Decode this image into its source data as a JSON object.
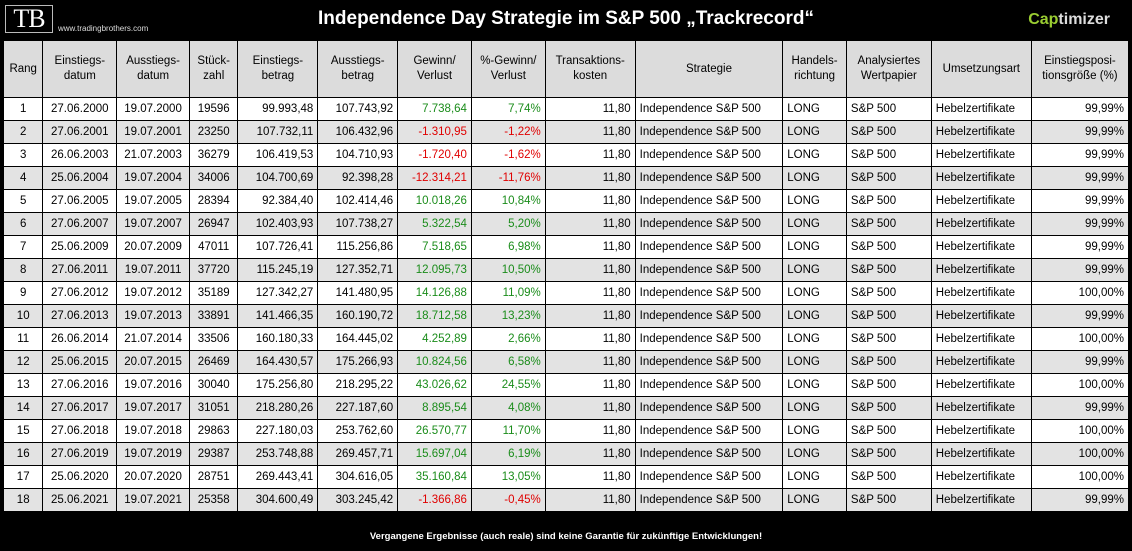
{
  "header": {
    "logo_text": "TB",
    "logo_url": "www.tradingbrothers.com",
    "title": "Independence Day Strategie im S&P 500 „Trackrecord“",
    "brand_prefix": "Cap",
    "brand_suffix": "timizer"
  },
  "columns": [
    "Rang",
    "Einstiegs-\ndatum",
    "Ausstiegs-\ndatum",
    "Stück-\nzahl",
    "Einstiegs-\nbetrag",
    "Ausstiegs-\nbetrag",
    "Gewinn/\nVerlust",
    "%-Gewinn/\nVerlust",
    "Transaktions-\nkosten",
    "Strategie",
    "Handels-\nrichtung",
    "Analysiertes\nWertpapier",
    "Umsetzungsart",
    "Einstiegsposi-\ntionsgröße (%)"
  ],
  "rows": [
    [
      "1",
      "27.06.2000",
      "19.07.2000",
      "19596",
      "99.993,48",
      "107.743,92",
      "7.738,64",
      "7,74%",
      "11,80",
      "Independence S&P 500",
      "LONG",
      "S&P 500",
      "Hebelzertifikate",
      "99,99%"
    ],
    [
      "2",
      "27.06.2001",
      "19.07.2001",
      "23250",
      "107.732,11",
      "106.432,96",
      "-1.310,95",
      "-1,22%",
      "11,80",
      "Independence S&P 500",
      "LONG",
      "S&P 500",
      "Hebelzertifikate",
      "99,99%"
    ],
    [
      "3",
      "26.06.2003",
      "21.07.2003",
      "36279",
      "106.419,53",
      "104.710,93",
      "-1.720,40",
      "-1,62%",
      "11,80",
      "Independence S&P 500",
      "LONG",
      "S&P 500",
      "Hebelzertifikate",
      "99,99%"
    ],
    [
      "4",
      "25.06.2004",
      "19.07.2004",
      "34006",
      "104.700,69",
      "92.398,28",
      "-12.314,21",
      "-11,76%",
      "11,80",
      "Independence S&P 500",
      "LONG",
      "S&P 500",
      "Hebelzertifikate",
      "99,99%"
    ],
    [
      "5",
      "27.06.2005",
      "19.07.2005",
      "28394",
      "92.384,40",
      "102.414,46",
      "10.018,26",
      "10,84%",
      "11,80",
      "Independence S&P 500",
      "LONG",
      "S&P 500",
      "Hebelzertifikate",
      "99,99%"
    ],
    [
      "6",
      "27.06.2007",
      "19.07.2007",
      "26947",
      "102.403,93",
      "107.738,27",
      "5.322,54",
      "5,20%",
      "11,80",
      "Independence S&P 500",
      "LONG",
      "S&P 500",
      "Hebelzertifikate",
      "99,99%"
    ],
    [
      "7",
      "25.06.2009",
      "20.07.2009",
      "47011",
      "107.726,41",
      "115.256,86",
      "7.518,65",
      "6,98%",
      "11,80",
      "Independence S&P 500",
      "LONG",
      "S&P 500",
      "Hebelzertifikate",
      "99,99%"
    ],
    [
      "8",
      "27.06.2011",
      "19.07.2011",
      "37720",
      "115.245,19",
      "127.352,71",
      "12.095,73",
      "10,50%",
      "11,80",
      "Independence S&P 500",
      "LONG",
      "S&P 500",
      "Hebelzertifikate",
      "99,99%"
    ],
    [
      "9",
      "27.06.2012",
      "19.07.2012",
      "35189",
      "127.342,27",
      "141.480,95",
      "14.126,88",
      "11,09%",
      "11,80",
      "Independence S&P 500",
      "LONG",
      "S&P 500",
      "Hebelzertifikate",
      "100,00%"
    ],
    [
      "10",
      "27.06.2013",
      "19.07.2013",
      "33891",
      "141.466,35",
      "160.190,72",
      "18.712,58",
      "13,23%",
      "11,80",
      "Independence S&P 500",
      "LONG",
      "S&P 500",
      "Hebelzertifikate",
      "99,99%"
    ],
    [
      "11",
      "26.06.2014",
      "21.07.2014",
      "33506",
      "160.180,33",
      "164.445,02",
      "4.252,89",
      "2,66%",
      "11,80",
      "Independence S&P 500",
      "LONG",
      "S&P 500",
      "Hebelzertifikate",
      "100,00%"
    ],
    [
      "12",
      "25.06.2015",
      "20.07.2015",
      "26469",
      "164.430,57",
      "175.266,93",
      "10.824,56",
      "6,58%",
      "11,80",
      "Independence S&P 500",
      "LONG",
      "S&P 500",
      "Hebelzertifikate",
      "99,99%"
    ],
    [
      "13",
      "27.06.2016",
      "19.07.2016",
      "30040",
      "175.256,80",
      "218.295,22",
      "43.026,62",
      "24,55%",
      "11,80",
      "Independence S&P 500",
      "LONG",
      "S&P 500",
      "Hebelzertifikate",
      "100,00%"
    ],
    [
      "14",
      "27.06.2017",
      "19.07.2017",
      "31051",
      "218.280,26",
      "227.187,60",
      "8.895,54",
      "4,08%",
      "11,80",
      "Independence S&P 500",
      "LONG",
      "S&P 500",
      "Hebelzertifikate",
      "99,99%"
    ],
    [
      "15",
      "27.06.2018",
      "19.07.2018",
      "29863",
      "227.180,03",
      "253.762,60",
      "26.570,77",
      "11,70%",
      "11,80",
      "Independence S&P 500",
      "LONG",
      "S&P 500",
      "Hebelzertifikate",
      "100,00%"
    ],
    [
      "16",
      "27.06.2019",
      "19.07.2019",
      "29387",
      "253.748,88",
      "269.457,71",
      "15.697,04",
      "6,19%",
      "11,80",
      "Independence S&P 500",
      "LONG",
      "S&P 500",
      "Hebelzertifikate",
      "100,00%"
    ],
    [
      "17",
      "25.06.2020",
      "20.07.2020",
      "28751",
      "269.443,41",
      "304.616,05",
      "35.160,84",
      "13,05%",
      "11,80",
      "Independence S&P 500",
      "LONG",
      "S&P 500",
      "Hebelzertifikate",
      "100,00%"
    ],
    [
      "18",
      "25.06.2021",
      "19.07.2021",
      "25358",
      "304.600,49",
      "303.245,42",
      "-1.366,86",
      "-0,45%",
      "11,80",
      "Independence S&P 500",
      "LONG",
      "S&P 500",
      "Hebelzertifikate",
      "99,99%"
    ]
  ],
  "footer": {
    "disclaimer": "Vergangene Ergebnisse (auch reale) sind keine Garantie für zukünftige Entwicklungen!"
  },
  "colors": {
    "positive": "#1a8c1a",
    "negative": "#e00000",
    "brand_accent": "#9acd32"
  }
}
